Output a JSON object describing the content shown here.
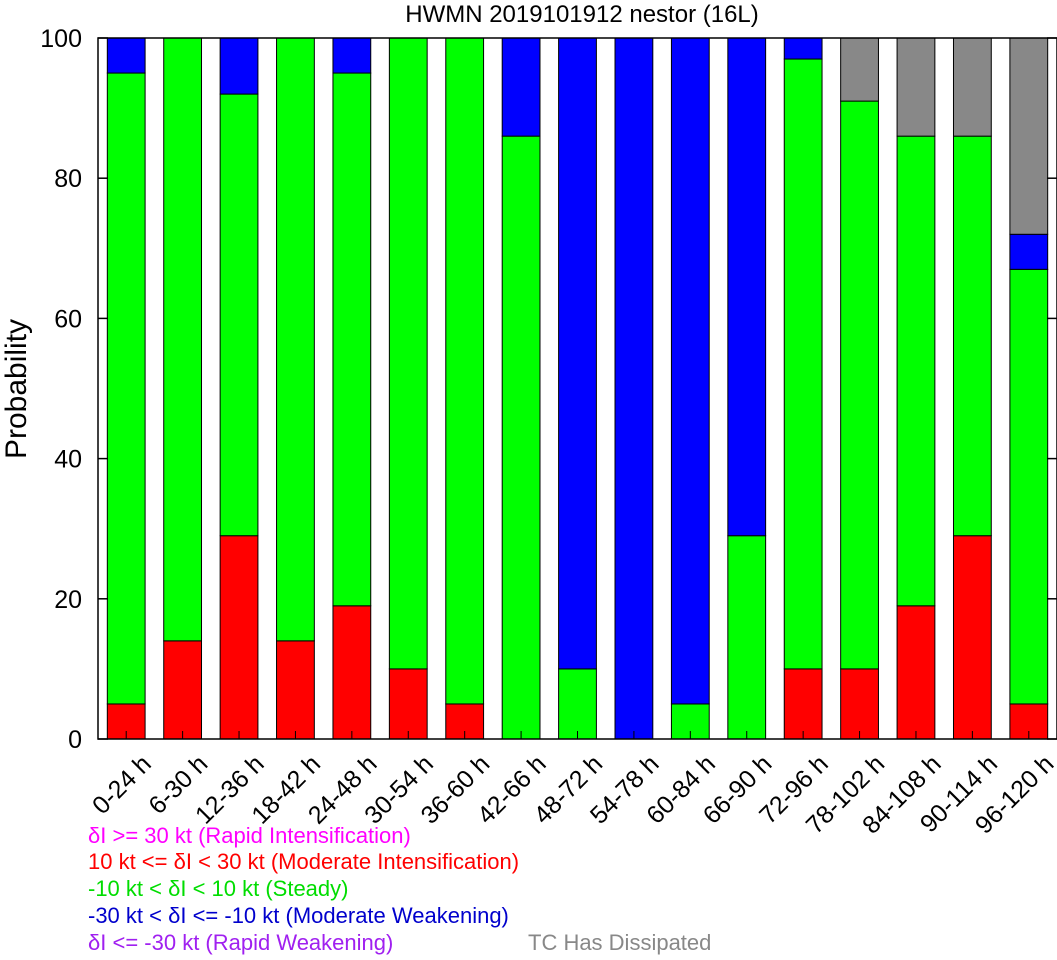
{
  "chart_data": {
    "type": "bar",
    "stacked": true,
    "title": "HWMN 2019101912 nestor (16L)",
    "xlabel": "",
    "ylabel": "Probability",
    "ylim": [
      0,
      100
    ],
    "yticks": [
      "0",
      "20",
      "40",
      "60",
      "80",
      "100"
    ],
    "categories": [
      "0-24 h",
      "6-30 h",
      "12-36 h",
      "18-42 h",
      "24-48 h",
      "30-54 h",
      "36-60 h",
      "42-66 h",
      "48-72 h",
      "54-78 h",
      "60-84 h",
      "66-90 h",
      "72-96 h",
      "78-102 h",
      "84-108 h",
      "90-114 h",
      "96-120 h"
    ],
    "series": [
      {
        "key": "rapid_intensification",
        "color": "#ff00ff",
        "values": [
          0,
          0,
          0,
          0,
          0,
          0,
          0,
          0,
          0,
          0,
          0,
          0,
          0,
          0,
          0,
          0,
          0
        ]
      },
      {
        "key": "moderate_intensification",
        "color": "#ff0000",
        "values": [
          5,
          14,
          29,
          14,
          19,
          10,
          5,
          0,
          0,
          0,
          0,
          0,
          10,
          10,
          19,
          29,
          5
        ]
      },
      {
        "key": "steady",
        "color": "#00ff00",
        "values": [
          90,
          86,
          63,
          86,
          76,
          90,
          95,
          86,
          10,
          0,
          5,
          29,
          87,
          81,
          67,
          57,
          62
        ]
      },
      {
        "key": "moderate_weakening",
        "color": "#0000ff",
        "values": [
          5,
          0,
          8,
          0,
          5,
          0,
          0,
          14,
          90,
          100,
          95,
          71,
          3,
          0,
          0,
          0,
          5
        ]
      },
      {
        "key": "rapid_weakening",
        "color": "#a020f0",
        "values": [
          0,
          0,
          0,
          0,
          0,
          0,
          0,
          0,
          0,
          0,
          0,
          0,
          0,
          0,
          0,
          0,
          0
        ]
      },
      {
        "key": "dissipated",
        "color": "#888888",
        "values": [
          0,
          0,
          0,
          0,
          0,
          0,
          0,
          0,
          0,
          0,
          0,
          0,
          0,
          9,
          14,
          14,
          28
        ]
      }
    ],
    "grid": false,
    "legend_placement": "bottom-left"
  },
  "legend": [
    {
      "text": "δI >= 30 kt (Rapid Intensification)",
      "color": "#ff00ff"
    },
    {
      "text": "10 kt <= δI < 30 kt (Moderate Intensification)",
      "color": "#ff0000"
    },
    {
      "text": "-10 kt < δI < 10 kt (Steady)",
      "color": "#00dd00"
    },
    {
      "text": "-30 kt < δI <= -10 kt (Moderate Weakening)",
      "color": "#0000cc"
    },
    {
      "text": "δI <= -30 kt (Rapid Weakening)",
      "color": "#a020f0"
    },
    {
      "text": "TC Has Dissipated",
      "color": "#888888"
    }
  ]
}
